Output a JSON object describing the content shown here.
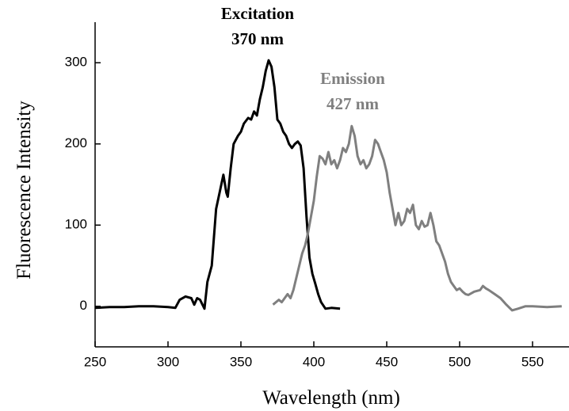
{
  "chart_data": {
    "type": "line",
    "x_label": "Wavelength (nm)",
    "y_label": "Fluorescence Intensity",
    "xlim": [
      250,
      575
    ],
    "ylim": [
      -50,
      350
    ],
    "xticks": [
      250,
      300,
      350,
      400,
      450,
      500,
      550
    ],
    "yticks": [
      0,
      100,
      200,
      300
    ],
    "grid": false,
    "series": [
      {
        "name": "Excitation",
        "peak_label": "370 nm",
        "color": "#000000",
        "x": [
          250,
          260,
          270,
          280,
          290,
          300,
          305,
          308,
          312,
          316,
          318,
          320,
          322,
          325,
          327,
          330,
          333,
          336,
          338,
          340,
          341,
          343,
          345,
          348,
          350,
          352,
          355,
          357,
          359,
          361,
          363,
          365,
          367,
          369,
          371,
          373,
          375,
          377,
          379,
          381,
          383,
          385,
          387,
          389,
          391,
          393,
          395,
          397,
          399,
          401,
          403,
          405,
          408,
          412,
          418
        ],
        "values": [
          -2,
          -1,
          -1,
          0,
          0,
          -1,
          -2,
          8,
          12,
          10,
          2,
          10,
          8,
          -3,
          30,
          50,
          120,
          145,
          162,
          140,
          135,
          170,
          200,
          210,
          215,
          225,
          232,
          230,
          240,
          235,
          255,
          270,
          290,
          303,
          295,
          270,
          230,
          225,
          215,
          210,
          200,
          195,
          200,
          203,
          198,
          170,
          110,
          60,
          40,
          28,
          15,
          5,
          -3,
          -2,
          -3
        ]
      },
      {
        "name": "Emission",
        "peak_label": "427 nm",
        "color": "#7f7f7f",
        "x": [
          372,
          376,
          378,
          382,
          384,
          386,
          388,
          390,
          392,
          394,
          396,
          398,
          400,
          402,
          404,
          406,
          408,
          410,
          412,
          414,
          416,
          418,
          420,
          422,
          424,
          426,
          428,
          430,
          432,
          434,
          436,
          438,
          440,
          442,
          444,
          446,
          448,
          450,
          452,
          454,
          456,
          458,
          460,
          462,
          464,
          466,
          468,
          470,
          472,
          474,
          476,
          478,
          480,
          482,
          484,
          486,
          488,
          490,
          492,
          494,
          496,
          498,
          500,
          502,
          504,
          506,
          510,
          514,
          516,
          518,
          520,
          524,
          528,
          532,
          536,
          540,
          545,
          550,
          560,
          570
        ],
        "values": [
          2,
          8,
          5,
          15,
          10,
          20,
          35,
          50,
          65,
          75,
          90,
          110,
          130,
          160,
          185,
          182,
          175,
          190,
          175,
          180,
          170,
          180,
          195,
          190,
          200,
          222,
          210,
          185,
          175,
          180,
          170,
          175,
          185,
          205,
          200,
          190,
          180,
          165,
          140,
          120,
          100,
          115,
          100,
          105,
          120,
          115,
          125,
          100,
          95,
          105,
          98,
          100,
          115,
          100,
          80,
          75,
          65,
          55,
          40,
          30,
          25,
          20,
          22,
          18,
          15,
          14,
          18,
          20,
          25,
          22,
          20,
          15,
          10,
          2,
          -5,
          -3,
          0,
          0,
          -1,
          0
        ]
      }
    ]
  }
}
